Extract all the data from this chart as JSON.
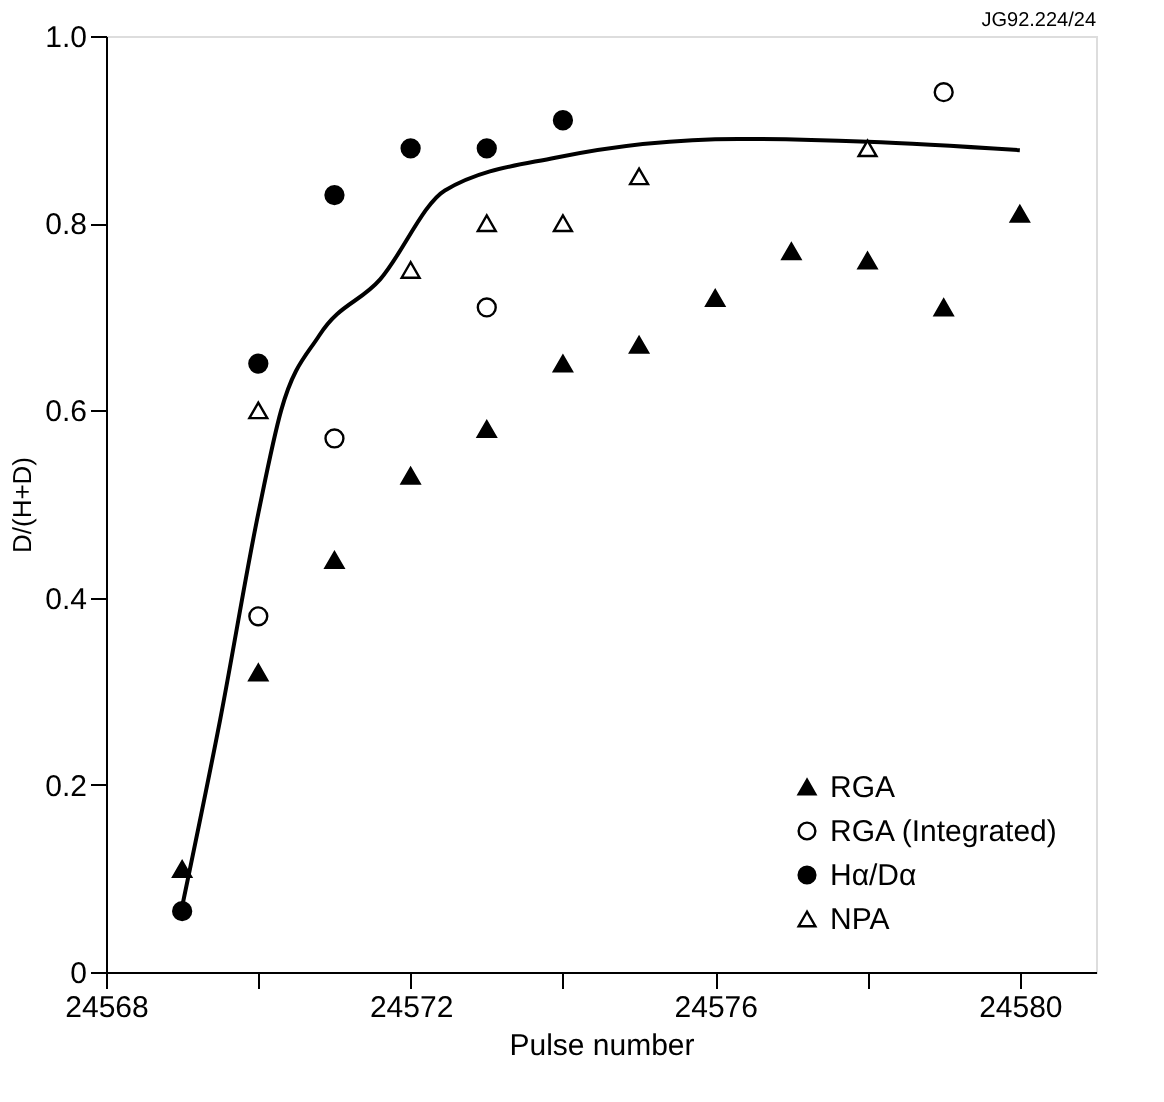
{
  "chart_data": {
    "type": "scatter",
    "xlabel": "Pulse number",
    "ylabel": "D/(H+D)",
    "annotations": [
      "JG92.224/24"
    ],
    "xlim": [
      24568,
      24581
    ],
    "ylim": [
      0,
      1
    ],
    "xticks": [
      24568,
      {
        "value": 24570,
        "label": null
      },
      24572,
      {
        "value": 24574,
        "label": null
      },
      24576,
      {
        "value": 24578,
        "label": null
      },
      24580
    ],
    "yticks": [
      0,
      0.2,
      0.4,
      0.6,
      0.8,
      {
        "value": 1,
        "label": "1.0"
      }
    ],
    "grid": false,
    "legend": "bottom right",
    "series": [
      {
        "name": "RGA",
        "marker": "triangle",
        "color": "#000000",
        "x": [
          24569,
          24570,
          24571,
          24572,
          24573,
          24574,
          24575,
          24576,
          24577,
          24578,
          24579,
          24580
        ],
        "values": [
          0.11,
          0.32,
          0.44,
          0.53,
          0.58,
          0.65,
          0.67,
          0.72,
          0.77,
          0.76,
          0.71,
          0.81
        ]
      },
      {
        "name": "RGA (Integrated)",
        "marker": "circle",
        "color": "#ffffff",
        "x": [
          24570,
          24571,
          24573,
          24579
        ],
        "values": [
          0.38,
          0.57,
          0.71,
          0.94
        ]
      },
      {
        "name": "Hα/Dα",
        "marker": "circle",
        "color": "#000000",
        "x": [
          24569,
          24570,
          24571,
          24572,
          24573,
          24574
        ],
        "values": [
          0.065,
          0.65,
          0.83,
          0.88,
          0.88,
          0.91
        ]
      },
      {
        "name": "NPA",
        "marker": "triangle",
        "color": "#ffffff",
        "x": [
          24570,
          24572,
          24573,
          24574,
          24575,
          24578
        ],
        "values": [
          0.6,
          0.75,
          0.8,
          0.8,
          0.85,
          0.88
        ]
      },
      {
        "type": "line",
        "color": "#000000",
        "x": [
          24569,
          24569.5,
          24570,
          24570.3,
          24570.8,
          24571.6,
          24572.45,
          24573.9,
          24576.3,
          24578,
          24580
        ],
        "values": [
          0.07,
          0.27,
          0.49,
          0.6,
          0.68,
          0.74,
          0.835,
          0.87,
          0.89,
          0.887,
          0.878
        ]
      }
    ]
  }
}
